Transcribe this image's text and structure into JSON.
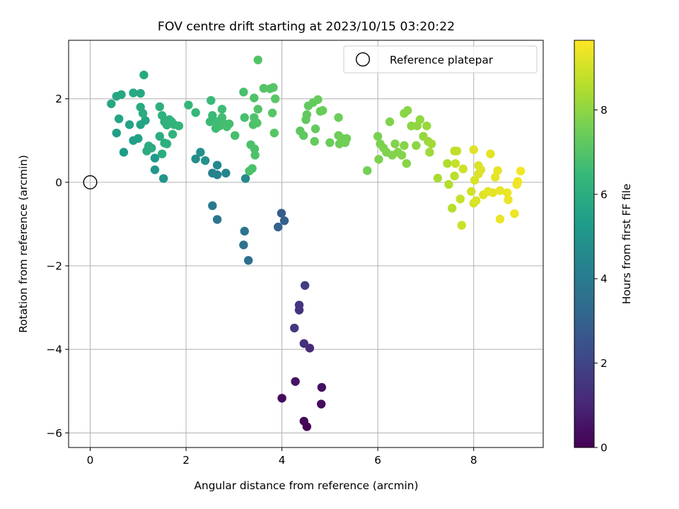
{
  "chart_data": {
    "type": "scatter",
    "title": "FOV centre drift starting at 2023/10/15 03:20:22",
    "xlabel": "Angular distance from reference (arcmin)",
    "ylabel": "Rotation from reference (arcmin)",
    "xlim": [
      -0.45,
      9.45
    ],
    "ylim": [
      -6.35,
      3.4
    ],
    "xticks": [
      0,
      2,
      4,
      6,
      8
    ],
    "yticks": [
      -6,
      -4,
      -2,
      0,
      2
    ],
    "xtick_labels": [
      "0",
      "2",
      "4",
      "6",
      "8"
    ],
    "ytick_labels": [
      "−6",
      "−4",
      "−2",
      "0",
      "2"
    ],
    "grid": true,
    "legend": {
      "position": "top-right",
      "entries": [
        "Reference platepar"
      ]
    },
    "reference_point": {
      "name": "Reference platepar",
      "x": 0,
      "y": 0
    },
    "colorbar": {
      "label": "Hours from first FF file",
      "colormap": "viridis",
      "range": [
        0,
        9.65
      ],
      "ticks": [
        0,
        2,
        4,
        6,
        8
      ],
      "tick_labels": [
        "0",
        "2",
        "4",
        "6",
        "8"
      ]
    },
    "colormap_stops": [
      "#440154",
      "#482878",
      "#3e4989",
      "#31688e",
      "#26828e",
      "#1f9e89",
      "#35b779",
      "#6ece58",
      "#b5de2b",
      "#fde725"
    ],
    "series": [
      {
        "points": [
          [
            4.52,
            -5.85,
            0.0
          ],
          [
            4.46,
            -5.72,
            0.1
          ],
          [
            4.0,
            -5.17,
            0.2
          ],
          [
            4.82,
            -5.31,
            0.3
          ],
          [
            4.83,
            -4.91,
            0.4
          ],
          [
            4.28,
            -4.77,
            0.5
          ],
          [
            4.58,
            -3.97,
            1.2
          ],
          [
            4.46,
            -3.86,
            1.3
          ],
          [
            4.36,
            -3.06,
            1.4
          ],
          [
            4.36,
            -2.94,
            1.5
          ],
          [
            4.26,
            -3.49,
            1.6
          ],
          [
            4.48,
            -2.47,
            1.8
          ],
          [
            3.99,
            -0.74,
            2.8
          ],
          [
            4.05,
            -0.92,
            2.9
          ],
          [
            3.92,
            -1.07,
            3.0
          ],
          [
            3.3,
            -1.87,
            3.5
          ],
          [
            3.2,
            -1.5,
            3.6
          ],
          [
            3.22,
            -1.17,
            3.7
          ],
          [
            2.65,
            -0.89,
            3.8
          ],
          [
            2.55,
            -0.56,
            3.9
          ],
          [
            2.55,
            0.22,
            4.2
          ],
          [
            2.65,
            0.18,
            4.3
          ],
          [
            2.83,
            0.22,
            4.4
          ],
          [
            3.24,
            0.09,
            4.5
          ],
          [
            2.65,
            0.41,
            4.6
          ],
          [
            2.2,
            0.56,
            4.7
          ],
          [
            2.3,
            0.72,
            4.8
          ],
          [
            2.4,
            0.52,
            4.9
          ],
          [
            1.53,
            0.09,
            5.0
          ],
          [
            1.35,
            0.3,
            5.1
          ],
          [
            1.35,
            0.58,
            5.2
          ],
          [
            0.7,
            0.72,
            5.3
          ],
          [
            0.55,
            1.18,
            5.4
          ],
          [
            0.9,
            1.0,
            5.45
          ],
          [
            1.0,
            1.05,
            5.5
          ],
          [
            0.82,
            1.38,
            5.55
          ],
          [
            1.05,
            1.38,
            5.6
          ],
          [
            1.15,
            1.48,
            5.62
          ],
          [
            0.6,
            1.52,
            5.65
          ],
          [
            0.44,
            1.88,
            5.7
          ],
          [
            0.55,
            2.06,
            5.72
          ],
          [
            0.65,
            2.1,
            5.75
          ],
          [
            0.9,
            2.14,
            5.78
          ],
          [
            1.05,
            2.13,
            5.8
          ],
          [
            1.12,
            2.57,
            5.85
          ],
          [
            1.05,
            1.8,
            5.88
          ],
          [
            1.1,
            1.65,
            5.9
          ],
          [
            1.18,
            0.75,
            5.92
          ],
          [
            1.22,
            0.87,
            5.95
          ],
          [
            1.28,
            0.82,
            5.98
          ],
          [
            1.45,
            1.1,
            6.0
          ],
          [
            1.5,
            0.68,
            6.02
          ],
          [
            1.55,
            0.94,
            6.05
          ],
          [
            1.6,
            0.92,
            6.08
          ],
          [
            1.45,
            1.81,
            6.1
          ],
          [
            1.5,
            1.6,
            6.12
          ],
          [
            1.55,
            1.45,
            6.15
          ],
          [
            1.6,
            1.37,
            6.18
          ],
          [
            1.65,
            1.5,
            6.2
          ],
          [
            1.7,
            1.45,
            6.22
          ],
          [
            1.75,
            1.38,
            6.25
          ],
          [
            1.72,
            1.15,
            6.28
          ],
          [
            1.85,
            1.35,
            6.3
          ],
          [
            2.05,
            1.85,
            6.4
          ],
          [
            2.2,
            1.67,
            6.45
          ],
          [
            2.52,
            1.96,
            6.5
          ],
          [
            2.55,
            1.6,
            6.52
          ],
          [
            2.5,
            1.45,
            6.55
          ],
          [
            2.62,
            1.29,
            6.58
          ],
          [
            2.65,
            1.45,
            6.6
          ],
          [
            2.75,
            1.75,
            6.62
          ],
          [
            2.75,
            1.55,
            6.65
          ],
          [
            2.7,
            1.35,
            6.68
          ],
          [
            2.8,
            1.4,
            6.7
          ],
          [
            2.9,
            1.4,
            6.72
          ],
          [
            2.85,
            1.33,
            6.75
          ],
          [
            3.02,
            1.12,
            6.78
          ],
          [
            3.22,
            1.55,
            6.8
          ],
          [
            3.2,
            2.16,
            6.82
          ],
          [
            3.35,
            0.9,
            6.85
          ],
          [
            3.38,
            0.33,
            6.86
          ],
          [
            3.32,
            0.27,
            6.87
          ],
          [
            3.44,
            0.65,
            6.88
          ],
          [
            3.43,
            0.8,
            6.89
          ],
          [
            3.4,
            1.38,
            6.9
          ],
          [
            3.42,
            1.55,
            6.92
          ],
          [
            3.48,
            1.42,
            6.94
          ],
          [
            3.42,
            2.02,
            6.96
          ],
          [
            3.5,
            1.75,
            6.98
          ],
          [
            3.5,
            2.93,
            7.0
          ],
          [
            3.62,
            2.25,
            7.02
          ],
          [
            3.75,
            2.24,
            7.04
          ],
          [
            3.82,
            2.27,
            7.06
          ],
          [
            3.8,
            1.66,
            7.08
          ],
          [
            3.84,
            1.18,
            7.1
          ],
          [
            3.86,
            2.0,
            7.12
          ],
          [
            4.38,
            1.23,
            7.2
          ],
          [
            4.45,
            1.12,
            7.22
          ],
          [
            4.5,
            1.5,
            7.24
          ],
          [
            4.52,
            1.62,
            7.26
          ],
          [
            4.55,
            1.83,
            7.28
          ],
          [
            4.65,
            1.91,
            7.3
          ],
          [
            4.7,
            1.28,
            7.32
          ],
          [
            4.68,
            0.98,
            7.34
          ],
          [
            4.75,
            1.98,
            7.36
          ],
          [
            4.8,
            1.7,
            7.38
          ],
          [
            4.85,
            1.72,
            7.4
          ],
          [
            5.0,
            0.95,
            7.42
          ],
          [
            5.18,
            1.55,
            7.44
          ],
          [
            5.18,
            1.12,
            7.46
          ],
          [
            5.2,
            0.92,
            7.48
          ],
          [
            5.25,
            1.05,
            7.5
          ],
          [
            5.35,
            1.05,
            7.52
          ],
          [
            5.32,
            0.95,
            7.54
          ],
          [
            5.78,
            0.28,
            7.6
          ],
          [
            6.0,
            1.1,
            7.65
          ],
          [
            6.05,
            0.92,
            7.7
          ],
          [
            6.02,
            0.55,
            7.72
          ],
          [
            6.12,
            0.82,
            7.74
          ],
          [
            6.18,
            0.72,
            7.76
          ],
          [
            6.25,
            1.45,
            7.78
          ],
          [
            6.3,
            0.65,
            7.8
          ],
          [
            6.36,
            0.92,
            7.82
          ],
          [
            6.42,
            0.72,
            7.84
          ],
          [
            6.5,
            0.65,
            7.86
          ],
          [
            6.55,
            0.88,
            7.88
          ],
          [
            6.6,
            0.45,
            7.9
          ],
          [
            6.55,
            1.65,
            7.92
          ],
          [
            6.62,
            1.72,
            7.94
          ],
          [
            6.7,
            1.35,
            7.96
          ],
          [
            6.8,
            0.88,
            7.98
          ],
          [
            6.82,
            1.35,
            8.0
          ],
          [
            6.88,
            1.5,
            8.05
          ],
          [
            6.95,
            1.1,
            8.1
          ],
          [
            7.02,
            1.35,
            8.15
          ],
          [
            7.05,
            0.98,
            8.2
          ],
          [
            7.08,
            0.72,
            8.25
          ],
          [
            7.12,
            0.92,
            8.3
          ],
          [
            7.25,
            0.1,
            8.4
          ],
          [
            7.45,
            0.45,
            8.5
          ],
          [
            7.48,
            -0.05,
            8.55
          ],
          [
            7.55,
            -0.62,
            8.6
          ],
          [
            7.6,
            0.15,
            8.65
          ],
          [
            7.6,
            0.75,
            8.7
          ],
          [
            7.65,
            0.75,
            8.75
          ],
          [
            7.62,
            0.45,
            8.8
          ],
          [
            7.72,
            -0.4,
            8.85
          ],
          [
            7.75,
            -1.03,
            8.9
          ],
          [
            7.78,
            0.32,
            8.95
          ],
          [
            7.95,
            -0.22,
            9.0
          ],
          [
            8.0,
            -0.5,
            9.05
          ],
          [
            8.02,
            0.05,
            9.1
          ],
          [
            8.05,
            -0.44,
            9.12
          ],
          [
            8.1,
            0.2,
            9.14
          ],
          [
            8.1,
            0.4,
            9.16
          ],
          [
            8.15,
            0.3,
            9.18
          ],
          [
            8.0,
            0.78,
            9.2
          ],
          [
            8.2,
            -0.3,
            9.22
          ],
          [
            8.3,
            -0.22,
            9.24
          ],
          [
            8.35,
            0.68,
            9.26
          ],
          [
            8.4,
            -0.25,
            9.28
          ],
          [
            8.45,
            0.12,
            9.3
          ],
          [
            8.5,
            0.28,
            9.32
          ],
          [
            8.55,
            -0.2,
            9.34
          ],
          [
            8.55,
            -0.88,
            9.36
          ],
          [
            8.7,
            -0.25,
            9.38
          ],
          [
            8.72,
            -0.42,
            9.4
          ],
          [
            8.85,
            -0.75,
            9.42
          ],
          [
            8.9,
            -0.05,
            9.44
          ],
          [
            8.92,
            0.02,
            9.46
          ],
          [
            8.98,
            0.27,
            9.48
          ]
        ]
      }
    ]
  }
}
